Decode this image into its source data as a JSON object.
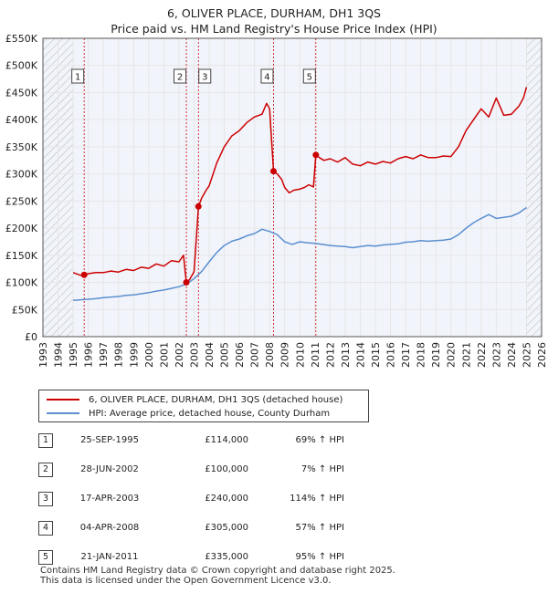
{
  "title": {
    "line1": "6, OLIVER PLACE, DURHAM, DH1 3QS",
    "line2": "Price paid vs. HM Land Registry's House Price Index (HPI)"
  },
  "legend": {
    "property": "6, OLIVER PLACE, DURHAM, DH1 3QS (detached house)",
    "hpi": "HPI: Average price, detached house, County Durham"
  },
  "sales": [
    {
      "num": "1",
      "date": "25-SEP-1995",
      "price": "£114,000",
      "hpi": "69% ↑ HPI"
    },
    {
      "num": "2",
      "date": "28-JUN-2002",
      "price": "£100,000",
      "hpi": "7% ↑ HPI"
    },
    {
      "num": "3",
      "date": "17-APR-2003",
      "price": "£240,000",
      "hpi": "114% ↑ HPI"
    },
    {
      "num": "4",
      "date": "04-APR-2008",
      "price": "£305,000",
      "hpi": "57% ↑ HPI"
    },
    {
      "num": "5",
      "date": "21-JAN-2011",
      "price": "£335,000",
      "hpi": "95% ↑ HPI"
    }
  ],
  "footer": {
    "line1": "Contains HM Land Registry data © Crown copyright and database right 2025.",
    "line2": "This data is licensed under the Open Government Licence v3.0."
  },
  "colors": {
    "property": "#cc0000",
    "hpi": "#5b8fd0",
    "grid": "#e6e6e6",
    "plot_bg": "#f2f4fb",
    "hatch": "#999999"
  },
  "chart_data": {
    "type": "line",
    "xlim": [
      1993,
      2026
    ],
    "ylim": [
      0,
      550000
    ],
    "x_ticks": [
      "1993",
      "1994",
      "1995",
      "1996",
      "1997",
      "1998",
      "1999",
      "2000",
      "2001",
      "2002",
      "2003",
      "2004",
      "2005",
      "2006",
      "2007",
      "2008",
      "2009",
      "2010",
      "2011",
      "2012",
      "2013",
      "2014",
      "2015",
      "2016",
      "2017",
      "2018",
      "2019",
      "2020",
      "2021",
      "2022",
      "2023",
      "2024",
      "2025",
      "2026"
    ],
    "y_ticks": [
      {
        "value": 0,
        "label": "£0"
      },
      {
        "value": 50000,
        "label": "£50K"
      },
      {
        "value": 100000,
        "label": "£100K"
      },
      {
        "value": 150000,
        "label": "£150K"
      },
      {
        "value": 200000,
        "label": "£200K"
      },
      {
        "value": 250000,
        "label": "£250K"
      },
      {
        "value": 300000,
        "label": "£300K"
      },
      {
        "value": 350000,
        "label": "£350K"
      },
      {
        "value": 400000,
        "label": "£400K"
      },
      {
        "value": 450000,
        "label": "£450K"
      },
      {
        "value": 500000,
        "label": "£500K"
      },
      {
        "value": 550000,
        "label": "£550K"
      }
    ],
    "hatched_ranges": [
      [
        1993,
        1995.0
      ],
      [
        2025.0,
        2026
      ]
    ],
    "grid": true,
    "series": [
      {
        "name": "6, OLIVER PLACE, DURHAM, DH1 3QS (detached house)",
        "x": [
          1995.0,
          1995.5,
          1995.73,
          1996,
          1996.5,
          1997,
          1997.5,
          1998,
          1998.5,
          1999,
          1999.5,
          2000,
          2000.5,
          2001,
          2001.5,
          2002,
          2002.3,
          2002.49,
          2002.7,
          2003.0,
          2003.29,
          2003.5,
          2003.8,
          2004.0,
          2004.5,
          2005,
          2005.5,
          2006,
          2006.5,
          2007,
          2007.5,
          2007.8,
          2008.0,
          2008.26,
          2008.5,
          2008.8,
          2009.0,
          2009.3,
          2009.6,
          2010,
          2010.3,
          2010.6,
          2010.9,
          2011.06,
          2011.3,
          2011.6,
          2012,
          2012.5,
          2013,
          2013.5,
          2014,
          2014.5,
          2015,
          2015.5,
          2016,
          2016.5,
          2017,
          2017.5,
          2018,
          2018.5,
          2019,
          2019.5,
          2020,
          2020.5,
          2021,
          2021.5,
          2022,
          2022.5,
          2023,
          2023.5,
          2024,
          2024.5,
          2024.8,
          2025.0
        ],
        "y": [
          118000,
          113000,
          114000,
          116000,
          118000,
          118000,
          121000,
          119000,
          124000,
          122000,
          128000,
          126000,
          134000,
          130000,
          140000,
          138000,
          150000,
          100000,
          105000,
          120000,
          240000,
          255000,
          270000,
          278000,
          320000,
          350000,
          370000,
          380000,
          395000,
          405000,
          410000,
          430000,
          420000,
          305000,
          300000,
          290000,
          275000,
          265000,
          270000,
          272000,
          275000,
          280000,
          276000,
          335000,
          330000,
          325000,
          328000,
          322000,
          330000,
          318000,
          315000,
          322000,
          318000,
          323000,
          320000,
          328000,
          332000,
          328000,
          335000,
          330000,
          330000,
          333000,
          332000,
          350000,
          380000,
          400000,
          420000,
          405000,
          440000,
          408000,
          410000,
          425000,
          440000,
          460000
        ]
      },
      {
        "name": "HPI: Average price, detached house, County Durham",
        "x": [
          1995.0,
          1995.5,
          1996,
          1996.5,
          1997,
          1997.5,
          1998,
          1998.5,
          1999,
          1999.5,
          2000,
          2000.5,
          2001,
          2001.5,
          2002,
          2002.5,
          2003,
          2003.5,
          2004,
          2004.5,
          2005,
          2005.5,
          2006,
          2006.5,
          2007,
          2007.5,
          2008,
          2008.5,
          2009,
          2009.5,
          2010,
          2010.5,
          2011,
          2011.5,
          2012,
          2012.5,
          2013,
          2013.5,
          2014,
          2014.5,
          2015,
          2015.5,
          2016,
          2016.5,
          2017,
          2017.5,
          2018,
          2018.5,
          2019,
          2019.5,
          2020,
          2020.5,
          2021,
          2021.5,
          2022,
          2022.5,
          2023,
          2023.5,
          2024,
          2024.5,
          2025.0
        ],
        "y": [
          67000,
          68000,
          69000,
          70000,
          72000,
          73000,
          74000,
          76000,
          77000,
          79000,
          81000,
          84000,
          86000,
          89000,
          92000,
          97000,
          107000,
          120000,
          138000,
          155000,
          168000,
          176000,
          180000,
          186000,
          190000,
          198000,
          194000,
          188000,
          175000,
          170000,
          175000,
          173000,
          172000,
          170000,
          168000,
          167000,
          166000,
          164000,
          166000,
          168000,
          167000,
          169000,
          170000,
          171000,
          174000,
          175000,
          177000,
          176000,
          177000,
          178000,
          180000,
          188000,
          200000,
          210000,
          218000,
          225000,
          218000,
          220000,
          222000,
          228000,
          238000
        ]
      }
    ],
    "markers": [
      {
        "label": "1",
        "x": 1995.73,
        "y": 114000
      },
      {
        "label": "2",
        "x": 2002.49,
        "y": 100000
      },
      {
        "label": "3",
        "x": 2003.29,
        "y": 240000
      },
      {
        "label": "4",
        "x": 2008.26,
        "y": 305000
      },
      {
        "label": "5",
        "x": 2011.06,
        "y": 335000
      }
    ]
  }
}
